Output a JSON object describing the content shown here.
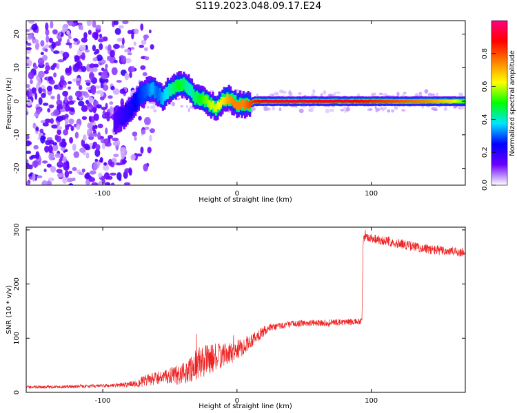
{
  "title": "S119.2023.048.09.17.E24",
  "chart_data": [
    {
      "type": "heatmap",
      "xlabel": "Height of straight line (km)",
      "ylabel": "Frequency (Hz)",
      "xlim": [
        -157,
        170
      ],
      "ylim": [
        -25,
        24
      ],
      "x_ticks": [
        -100,
        0,
        100
      ],
      "y_ticks": [
        -20,
        -10,
        0,
        10,
        20
      ],
      "grid": false,
      "colorbar": {
        "label": "Normalized spectral amplitude",
        "range": [
          0.0,
          1.0
        ],
        "ticks": [
          0.0,
          0.2,
          0.4,
          0.6,
          0.8
        ],
        "tick_labels": [
          "0.0",
          "0.2",
          "0.4",
          "0.6",
          "0.8"
        ],
        "colors": [
          "#ffffff",
          "#6a00ff",
          "#0000ff",
          "#00e5ff",
          "#00ff00",
          "#ffff00",
          "#ff8000",
          "#ff0000",
          "#ff0080"
        ]
      },
      "ridge": {
        "x": [
          -92,
          -88,
          -84,
          -80,
          -76,
          -72,
          -68,
          -64,
          -60,
          -56,
          -52,
          -48,
          -44,
          -40,
          -36,
          -32,
          -28,
          -24,
          -20,
          -16,
          -12,
          -8,
          -4,
          0,
          4,
          8,
          12,
          20,
          40,
          60,
          80,
          100,
          120,
          140,
          160,
          170
        ],
        "frequency_hz": [
          -6,
          -5,
          -4,
          -2,
          0,
          2,
          3,
          4,
          2,
          1,
          3,
          4,
          5,
          5,
          4,
          1,
          1,
          0,
          -1,
          -2,
          0,
          1,
          0,
          -1,
          -1,
          -1,
          0,
          0,
          0,
          0,
          0,
          0,
          0,
          0,
          0,
          0
        ],
        "amplitude": [
          0.15,
          0.18,
          0.2,
          0.22,
          0.25,
          0.28,
          0.3,
          0.35,
          0.3,
          0.35,
          0.4,
          0.45,
          0.5,
          0.45,
          0.4,
          0.45,
          0.5,
          0.55,
          0.6,
          0.6,
          0.65,
          0.7,
          0.75,
          0.75,
          0.75,
          0.8,
          0.85,
          0.9,
          0.92,
          0.9,
          0.9,
          0.85,
          0.8,
          0.75,
          0.65,
          0.5
        ]
      },
      "noise_region_x": [
        -157,
        -75
      ]
    },
    {
      "type": "line",
      "xlabel": "Height of straight line (km)",
      "ylabel": "SNR (10 * v/v)",
      "xlim": [
        -157,
        170
      ],
      "ylim": [
        0,
        305
      ],
      "x_ticks": [
        -100,
        0,
        100
      ],
      "y_ticks": [
        0,
        100,
        200,
        300
      ],
      "grid": false,
      "series": [
        {
          "color": "#ee2222",
          "x": [
            -157,
            -140,
            -120,
            -100,
            -90,
            -80,
            -75,
            -70,
            -65,
            -60,
            -55,
            -50,
            -45,
            -40,
            -35,
            -30,
            -25,
            -20,
            -15,
            -10,
            -5,
            0,
            5,
            10,
            15,
            20,
            25,
            30,
            40,
            50,
            60,
            70,
            80,
            90,
            93,
            94,
            100,
            110,
            120,
            130,
            140,
            150,
            160,
            170
          ],
          "y": [
            10,
            10,
            11,
            12,
            13,
            15,
            17,
            20,
            23,
            26,
            28,
            30,
            32,
            35,
            42,
            52,
            58,
            62,
            65,
            68,
            72,
            78,
            85,
            95,
            105,
            112,
            118,
            122,
            126,
            128,
            128,
            129,
            130,
            130,
            130,
            285,
            285,
            280,
            275,
            270,
            265,
            262,
            260,
            258
          ],
          "noise": [
            3,
            3,
            3,
            3,
            4,
            5,
            8,
            10,
            12,
            12,
            12,
            15,
            18,
            20,
            25,
            30,
            30,
            28,
            25,
            22,
            20,
            18,
            16,
            14,
            12,
            10,
            8,
            7,
            6,
            6,
            6,
            6,
            6,
            6,
            6,
            9,
            9,
            9,
            9,
            9,
            9,
            9,
            9,
            9
          ]
        }
      ]
    }
  ]
}
